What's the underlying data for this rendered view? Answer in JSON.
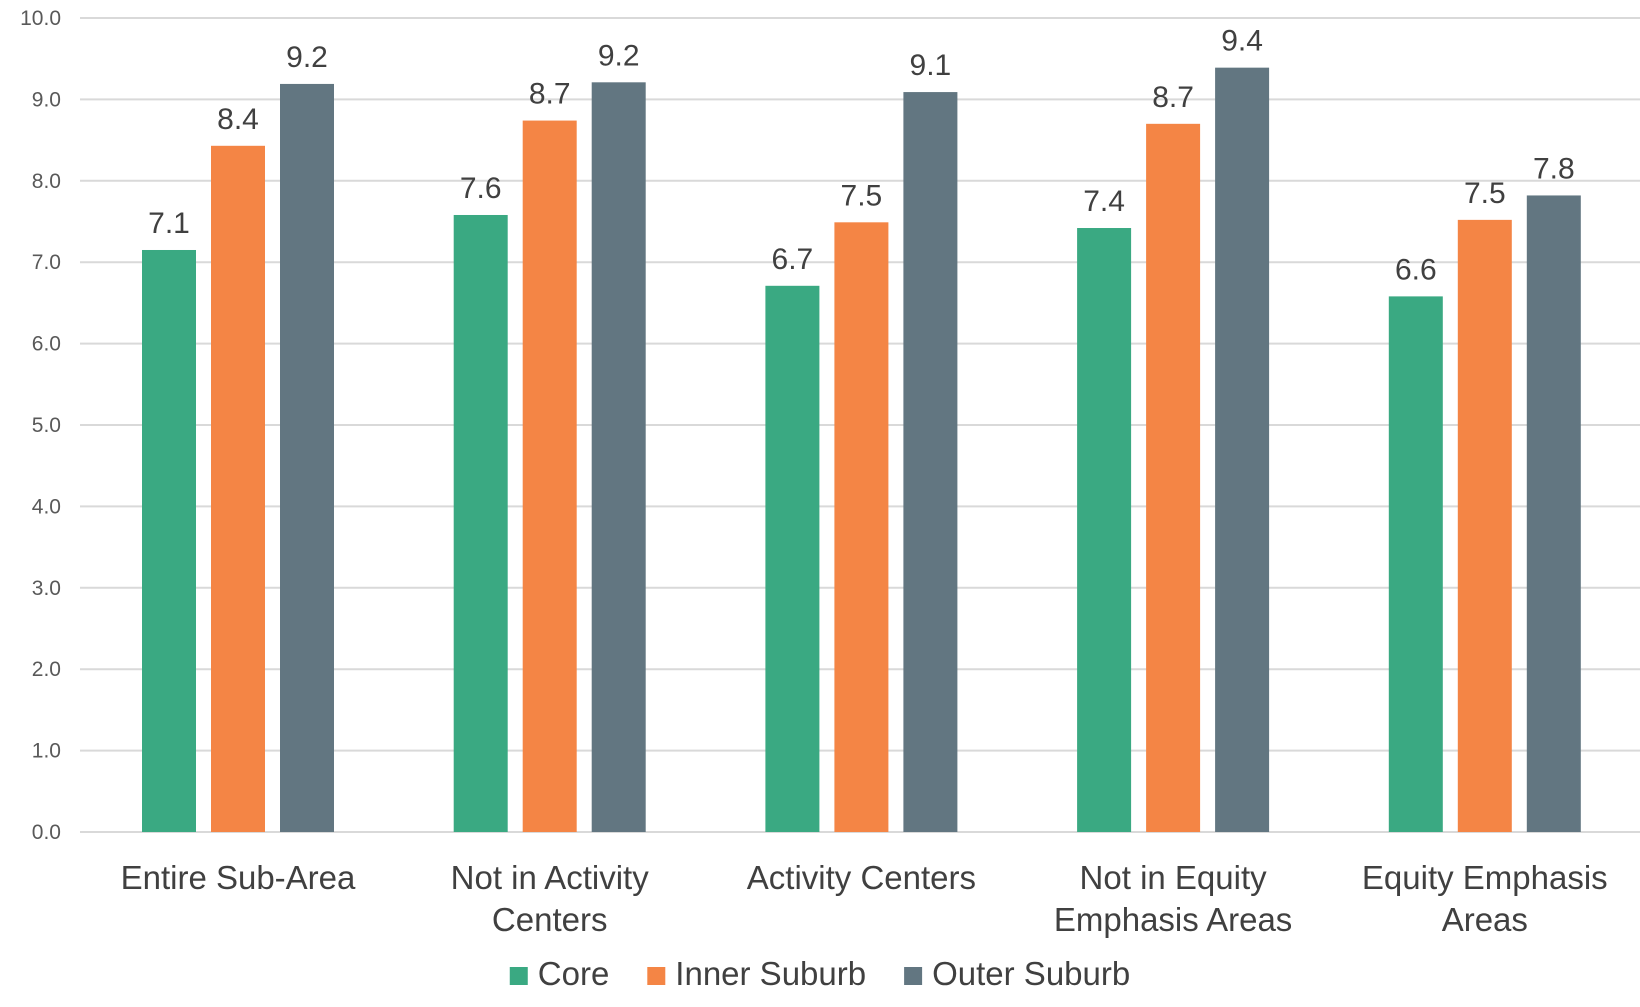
{
  "chart_data": {
    "type": "bar",
    "categories": [
      [
        "Entire Sub-Area"
      ],
      [
        "Not in Activity",
        "Centers"
      ],
      [
        "Activity Centers"
      ],
      [
        "Not in Equity",
        "Emphasis Areas"
      ],
      [
        "Equity Emphasis",
        "Areas"
      ]
    ],
    "series": [
      {
        "name": "Core",
        "color": "#3aa982",
        "values": [
          7.1,
          7.6,
          6.7,
          7.4,
          6.6
        ]
      },
      {
        "name": "Inner Suburb",
        "color": "#f48545",
        "values": [
          8.4,
          8.7,
          7.5,
          8.7,
          7.5
        ]
      },
      {
        "name": "Outer Suburb",
        "color": "#627681",
        "values": [
          9.2,
          9.2,
          9.1,
          9.4,
          7.8
        ]
      }
    ],
    "data_labels": [
      [
        "7.1",
        "7.6",
        "6.7",
        "7.4",
        "6.6"
      ],
      [
        "8.4",
        "8.7",
        "7.5",
        "8.7",
        "7.5"
      ],
      [
        "9.2",
        "9.2",
        "9.1",
        "9.4",
        "7.8"
      ]
    ],
    "bar_values_precise": [
      [
        7.15,
        7.58,
        6.71,
        7.42,
        6.58
      ],
      [
        8.43,
        8.74,
        7.49,
        8.7,
        7.52
      ],
      [
        9.19,
        9.21,
        9.09,
        9.39,
        7.82
      ]
    ],
    "ylim": [
      0,
      10
    ],
    "yticks": [
      "0.0",
      "1.0",
      "2.0",
      "3.0",
      "4.0",
      "5.0",
      "6.0",
      "7.0",
      "8.0",
      "9.0",
      "10.0"
    ],
    "title": "",
    "xlabel": "",
    "ylabel": "",
    "grid": true,
    "legend_position": "bottom"
  }
}
